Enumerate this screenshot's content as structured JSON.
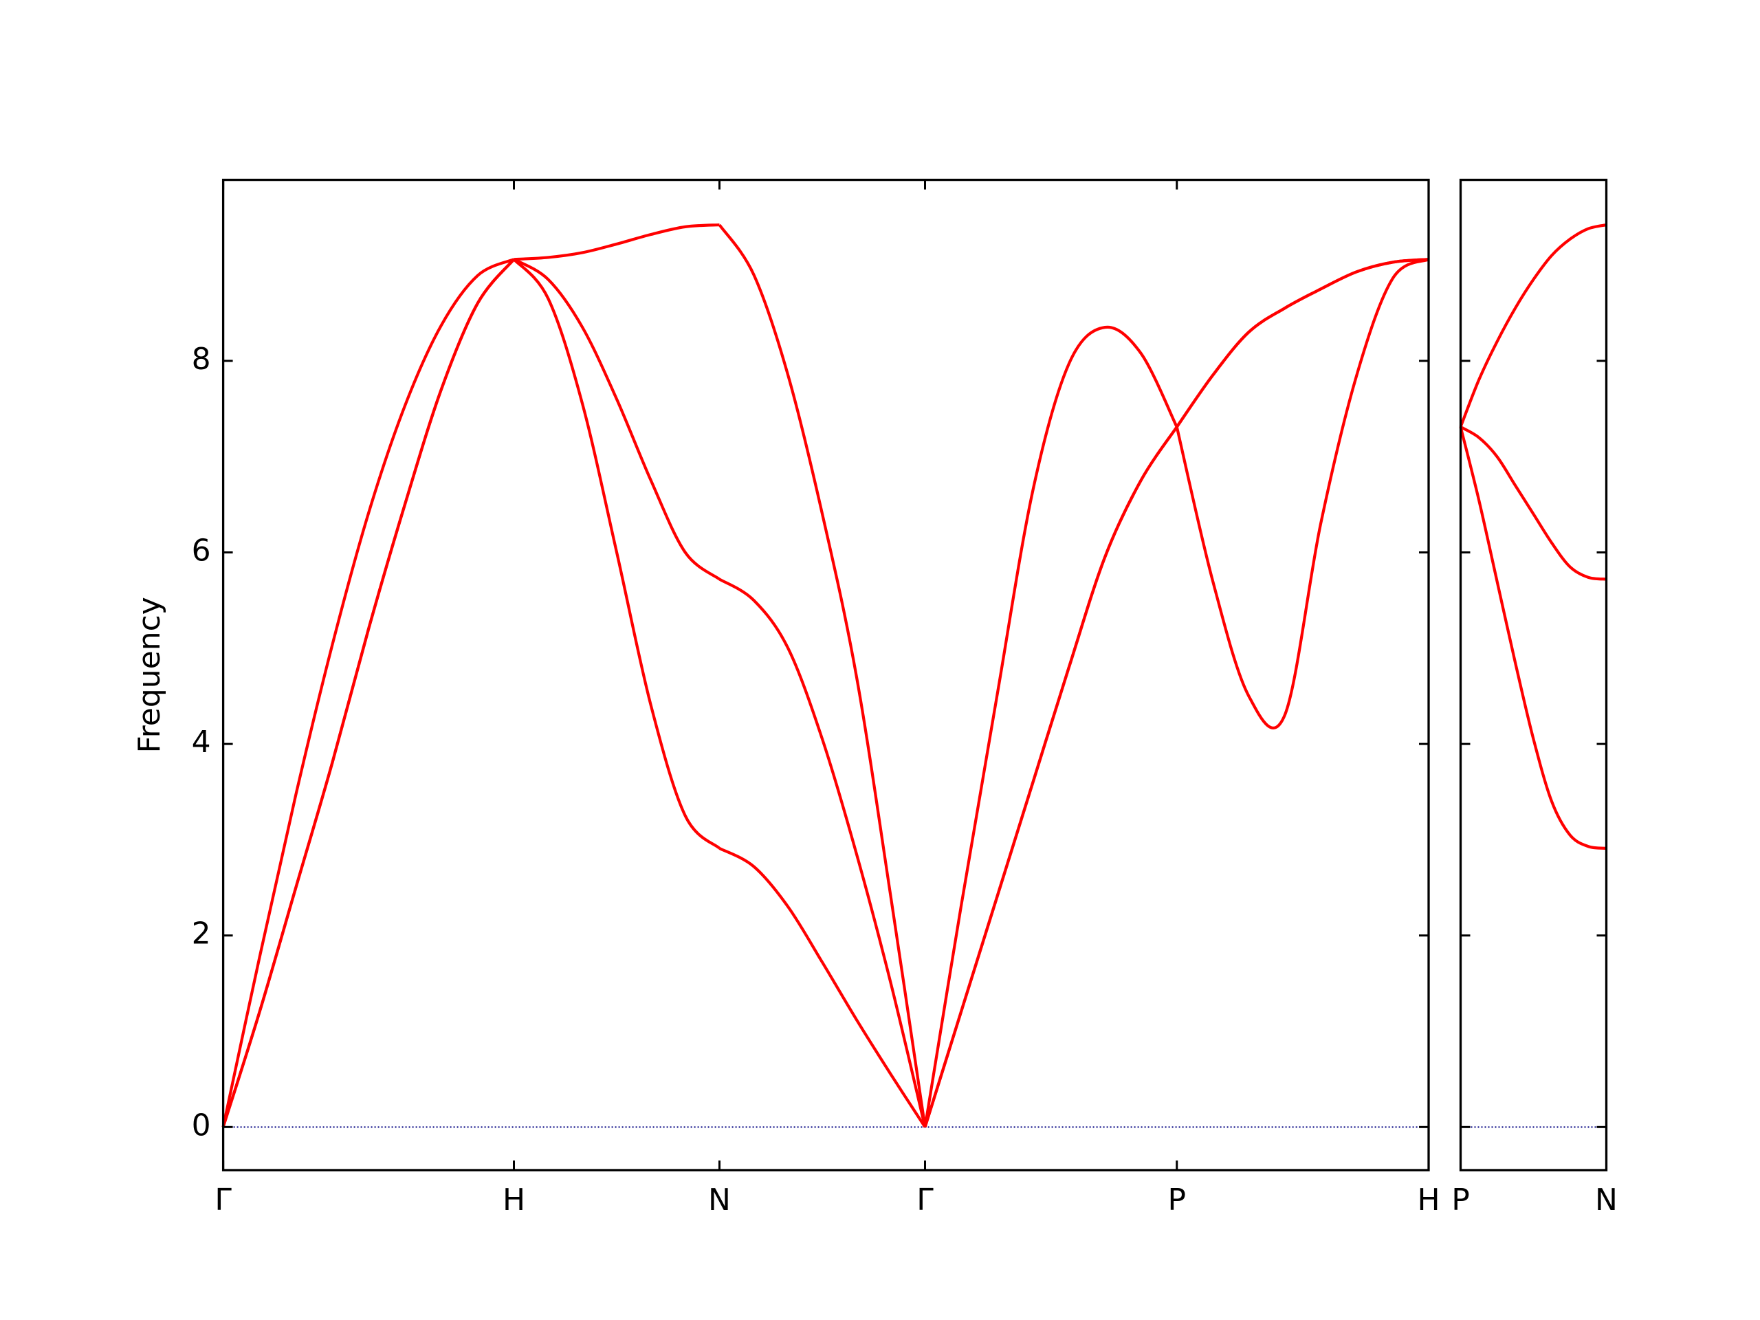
{
  "chart_data": [
    {
      "type": "line",
      "ylabel": "Frequency",
      "x": [
        0,
        0.125,
        0.25,
        0.375,
        0.5,
        0.625,
        0.75,
        0.875,
        1,
        1.1179,
        1.2357,
        1.3536,
        1.4714,
        1.5893,
        1.707,
        1.8249,
        1.9428,
        2.0607,
        2.1785,
        2.2964,
        2.414,
        2.5377,
        2.6614,
        2.7851,
        2.9089,
        3.0326,
        3.1563,
        3.28,
        3.4037,
        3.5274,
        3.6511,
        3.7749,
        3.8986,
        4.0223,
        4.146
      ],
      "series": [
        {
          "color": "#ff0000",
          "values": [
            0,
            1.2,
            2.5,
            3.8,
            5.2,
            6.5,
            7.7,
            8.6,
            9.06,
            8.65,
            7.55,
            6.0,
            4.4,
            3.25,
            2.91,
            2.72,
            2.3,
            1.72,
            1.12,
            0.55,
            0,
            1.2,
            2.4,
            3.6,
            4.8,
            5.95,
            6.75,
            7.31,
            7.85,
            8.3,
            8.55,
            8.75,
            8.93,
            9.03,
            9.06
          ]
        },
        {
          "color": "#ff0000",
          "values": [
            0,
            1.2,
            2.5,
            3.8,
            5.2,
            6.5,
            7.7,
            8.6,
            9.06,
            8.85,
            8.35,
            7.6,
            6.75,
            6.0,
            5.72,
            5.5,
            5.0,
            4.05,
            2.85,
            1.5,
            0,
            1.2,
            2.4,
            3.6,
            4.8,
            5.95,
            6.75,
            7.31,
            7.85,
            8.3,
            8.55,
            8.75,
            8.93,
            9.03,
            9.06
          ]
        },
        {
          "color": "#ff0000",
          "values": [
            0,
            1.77,
            3.47,
            5.03,
            6.41,
            7.53,
            8.37,
            8.89,
            9.06,
            9.08,
            9.13,
            9.22,
            9.32,
            9.4,
            9.42,
            8.9,
            7.85,
            6.4,
            4.7,
            2.4,
            0,
            2.3,
            4.5,
            6.65,
            7.97,
            8.35,
            8.08,
            7.31,
            5.7,
            4.5,
            4.3,
            6.3,
            7.85,
            8.86,
            9.06
          ]
        }
      ],
      "xlim": [
        0,
        4.146
      ],
      "xticks": [
        {
          "value": 0,
          "label": "Γ"
        },
        {
          "value": 1,
          "label": "H"
        },
        {
          "value": 1.707,
          "label": "N"
        },
        {
          "value": 2.414,
          "label": "Γ"
        },
        {
          "value": 3.28,
          "label": "P"
        },
        {
          "value": 4.146,
          "label": "H"
        }
      ],
      "ylim": [
        -0.45,
        9.89
      ],
      "yticks": [
        0,
        2,
        4,
        6,
        8
      ],
      "ytick_labels": true,
      "hline": 0,
      "hline_color": "#000080"
    },
    {
      "type": "line",
      "x": [
        0,
        0.0625,
        0.125,
        0.1875,
        0.25,
        0.3125,
        0.375,
        0.4375,
        0.5
      ],
      "series": [
        {
          "color": "#ff0000",
          "values": [
            7.31,
            6.55,
            5.7,
            4.85,
            4.05,
            3.4,
            3.05,
            2.93,
            2.91
          ]
        },
        {
          "color": "#ff0000",
          "values": [
            7.31,
            7.2,
            7.0,
            6.7,
            6.4,
            6.1,
            5.85,
            5.74,
            5.72
          ]
        },
        {
          "color": "#ff0000",
          "values": [
            7.31,
            7.8,
            8.2,
            8.55,
            8.85,
            9.1,
            9.27,
            9.38,
            9.42
          ]
        }
      ],
      "xlim": [
        0,
        0.5
      ],
      "xticks": [
        {
          "value": 0,
          "label": "P"
        },
        {
          "value": 0.5,
          "label": "N"
        }
      ],
      "ylim": [
        -0.45,
        9.89
      ],
      "yticks": [
        0,
        2,
        4,
        6,
        8
      ],
      "ytick_labels": false,
      "hline": 0,
      "hline_color": "#000080"
    }
  ]
}
